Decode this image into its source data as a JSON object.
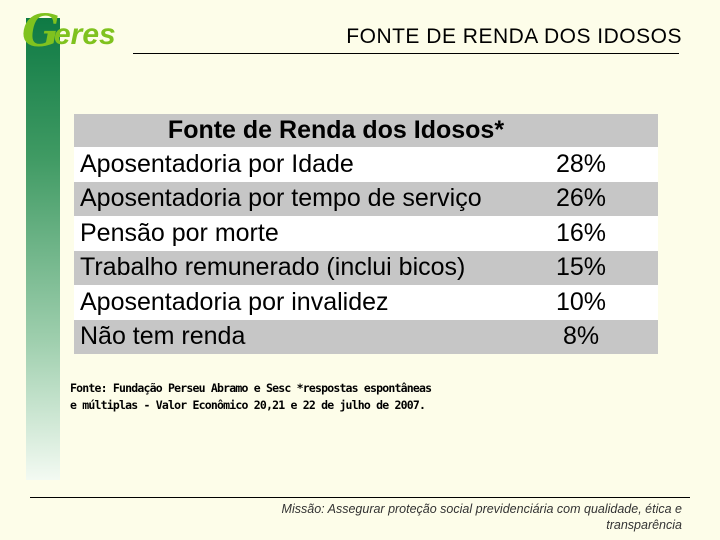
{
  "header": {
    "logo_mark": "G",
    "logo_text": "eres",
    "title": "FONTE DE RENDA DOS IDOSOS"
  },
  "table": {
    "title": "Fonte de Renda dos Idosos*",
    "rows": [
      {
        "label": "Aposentadoria por Idade",
        "value": "28%"
      },
      {
        "label": "Aposentadoria por tempo de serviço",
        "value": "26%"
      },
      {
        "label": "Pensão por morte",
        "value": "16%"
      },
      {
        "label": "Trabalho remunerado (inclui bicos)",
        "value": "15%"
      },
      {
        "label": "Aposentadoria por invalidez",
        "value": "10%"
      },
      {
        "label": "Não tem renda",
        "value": " 8%"
      }
    ]
  },
  "source": {
    "line1": "Fonte: Fundação Perseu Abramo e Sesc *respostas espontâneas",
    "line2": "e múltiplas - Valor Econômico 20,21 e 22 de julho de 2007."
  },
  "footer": {
    "mission_line1": "Missão: Assegurar proteção social previdenciária com qualidade, ética e",
    "mission_line2": "transparência"
  },
  "colors": {
    "sidebar_green": "#0e7a44",
    "logo_green": "#7fc21f",
    "row_gray": "#c6c6c6",
    "background": "#fdfde9"
  }
}
